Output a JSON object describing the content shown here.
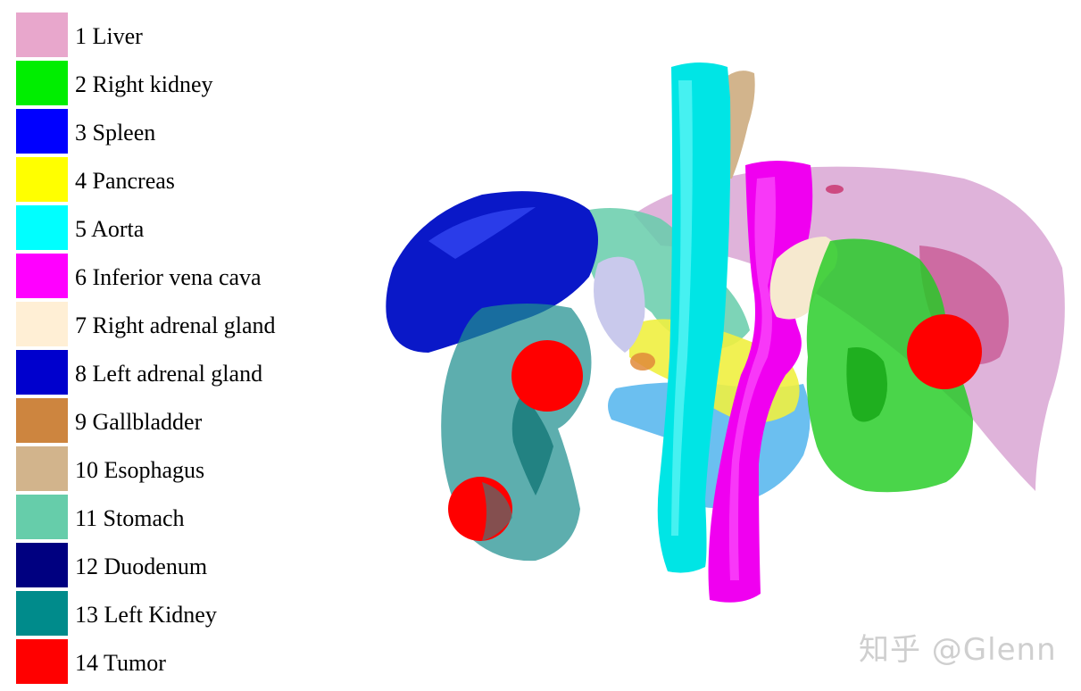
{
  "legend": {
    "items": [
      {
        "label": "1 Liver",
        "color": "#e8a7cc"
      },
      {
        "label": "2 Right kidney",
        "color": "#00ee00"
      },
      {
        "label": "3 Spleen",
        "color": "#0000ff"
      },
      {
        "label": "4 Pancreas",
        "color": "#ffff00"
      },
      {
        "label": "5 Aorta",
        "color": "#00ffff"
      },
      {
        "label": "6 Inferior vena cava",
        "color": "#ff00ff"
      },
      {
        "label": "7 Right adrenal gland",
        "color": "#ffefd5"
      },
      {
        "label": "8 Left adrenal gland",
        "color": "#0000cd"
      },
      {
        "label": "9 Gallbladder",
        "color": "#cd853f"
      },
      {
        "label": "10 Esophagus",
        "color": "#d2b48c"
      },
      {
        "label": "11 Stomach",
        "color": "#66cdaa"
      },
      {
        "label": "12 Duodenum",
        "color": "#000080"
      },
      {
        "label": "13 Left Kidney",
        "color": "#008b8b"
      },
      {
        "label": "14 Tumor",
        "color": "#ff0000"
      }
    ]
  },
  "watermark": "知乎 @Glenn"
}
